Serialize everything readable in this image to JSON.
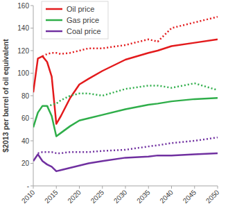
{
  "chart_data": {
    "type": "line",
    "y_label": "$2013 per barrel of oil equivalent",
    "x": [
      2010,
      2011,
      2012,
      2013,
      2014,
      2015,
      2016,
      2018,
      2020,
      2022,
      2025,
      2030,
      2035,
      2037,
      2040,
      2045,
      2050
    ],
    "xlim": [
      2010,
      2050
    ],
    "xticks": [
      2010,
      2015,
      2020,
      2025,
      2030,
      2035,
      2040,
      2045,
      2050
    ],
    "ylim": [
      0,
      160
    ],
    "yticks": [
      {
        "value": 0,
        "label": "-"
      },
      20,
      40,
      60,
      80,
      100,
      120,
      140,
      160
    ],
    "grid": false,
    "legend": "upper left",
    "series": [
      {
        "name": "Oil price",
        "color": "#e31a1c",
        "line_style": "solid",
        "values": [
          83,
          113,
          115,
          110,
          97,
          55,
          62,
          78,
          90,
          95,
          102,
          112,
          118,
          120,
          124,
          127,
          130
        ]
      },
      {
        "name": "Gas price",
        "color": "#2fae4a",
        "line_style": "solid",
        "values": [
          52,
          65,
          71,
          71,
          62,
          44,
          47,
          53,
          58,
          60,
          63,
          68,
          72,
          73,
          75,
          77,
          78
        ]
      },
      {
        "name": "Coal price",
        "color": "#7030a0",
        "line_style": "solid",
        "values": [
          22,
          28,
          22,
          19,
          17,
          13,
          14,
          16,
          18,
          20,
          22,
          25,
          26,
          27,
          27,
          28,
          29
        ]
      },
      {
        "color": "#e31a1c",
        "line_style": "dotted",
        "values": [
          null,
          null,
          115,
          117,
          118,
          118,
          117,
          118,
          120,
          122,
          122,
          125,
          130,
          128,
          140,
          145,
          150
        ]
      },
      {
        "color": "#2fae4a",
        "line_style": "dotted",
        "values": [
          null,
          null,
          null,
          70,
          72,
          73,
          76,
          80,
          82,
          82,
          80,
          86,
          89,
          89,
          87,
          91,
          85
        ]
      },
      {
        "color": "#7030a0",
        "line_style": "dotted",
        "values": [
          null,
          29,
          30,
          30,
          30,
          29,
          29,
          30,
          30,
          30,
          31,
          32,
          35,
          36,
          38,
          40,
          43
        ]
      }
    ]
  }
}
